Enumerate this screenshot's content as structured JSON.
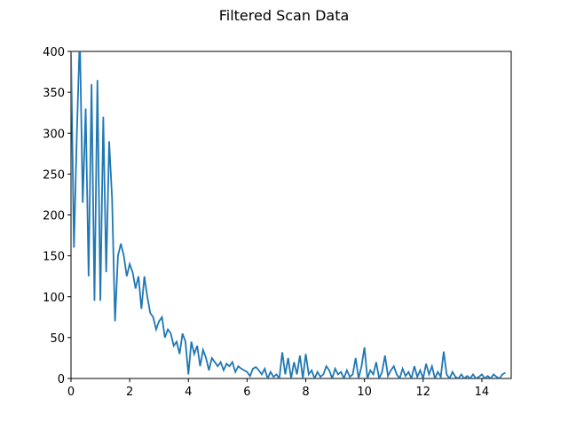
{
  "chart_data": {
    "type": "line",
    "title": "Filtered Scan Data",
    "x": [
      0.0,
      0.1,
      0.2,
      0.3,
      0.4,
      0.5,
      0.6,
      0.7,
      0.8,
      0.9,
      1.0,
      1.1,
      1.2,
      1.3,
      1.4,
      1.5,
      1.6,
      1.7,
      1.8,
      1.9,
      2.0,
      2.1,
      2.2,
      2.3,
      2.4,
      2.5,
      2.6,
      2.7,
      2.8,
      2.9,
      3.0,
      3.1,
      3.2,
      3.3,
      3.4,
      3.5,
      3.6,
      3.7,
      3.8,
      3.9,
      4.0,
      4.1,
      4.2,
      4.3,
      4.4,
      4.5,
      4.6,
      4.7,
      4.8,
      4.9,
      5.0,
      5.1,
      5.2,
      5.3,
      5.4,
      5.5,
      5.6,
      5.7,
      5.8,
      5.9,
      6.0,
      6.1,
      6.2,
      6.3,
      6.4,
      6.5,
      6.6,
      6.7,
      6.8,
      6.9,
      7.0,
      7.1,
      7.2,
      7.3,
      7.4,
      7.5,
      7.6,
      7.7,
      7.8,
      7.9,
      8.0,
      8.1,
      8.2,
      8.3,
      8.4,
      8.5,
      8.6,
      8.7,
      8.8,
      8.9,
      9.0,
      9.1,
      9.2,
      9.3,
      9.4,
      9.5,
      9.6,
      9.7,
      9.8,
      9.9,
      10.0,
      10.1,
      10.2,
      10.3,
      10.4,
      10.5,
      10.6,
      10.7,
      10.8,
      10.9,
      11.0,
      11.1,
      11.2,
      11.3,
      11.4,
      11.5,
      11.6,
      11.7,
      11.8,
      11.9,
      12.0,
      12.1,
      12.2,
      12.3,
      12.4,
      12.5,
      12.6,
      12.7,
      12.8,
      12.9,
      13.0,
      13.1,
      13.2,
      13.3,
      13.4,
      13.5,
      13.6,
      13.7,
      13.8,
      13.9,
      14.0,
      14.1,
      14.2,
      14.3,
      14.4,
      14.5,
      14.6,
      14.7,
      14.8
    ],
    "series": [
      {
        "color": "#1f77b4",
        "values": [
          400,
          160,
          300,
          420,
          215,
          330,
          125,
          360,
          95,
          365,
          95,
          320,
          130,
          290,
          220,
          70,
          150,
          165,
          150,
          125,
          140,
          130,
          110,
          125,
          85,
          125,
          100,
          80,
          75,
          60,
          70,
          75,
          50,
          60,
          55,
          40,
          45,
          30,
          55,
          45,
          5,
          45,
          30,
          40,
          15,
          35,
          25,
          10,
          25,
          20,
          15,
          20,
          10,
          18,
          15,
          20,
          8,
          15,
          12,
          10,
          8,
          3,
          12,
          14,
          10,
          5,
          12,
          0,
          8,
          2,
          5,
          0,
          32,
          5,
          25,
          0,
          20,
          5,
          28,
          0,
          30,
          5,
          10,
          0,
          8,
          2,
          5,
          15,
          10,
          0,
          12,
          5,
          8,
          0,
          10,
          2,
          5,
          25,
          0,
          15,
          38,
          0,
          10,
          5,
          20,
          0,
          8,
          28,
          3,
          10,
          15,
          5,
          0,
          12,
          3,
          8,
          0,
          15,
          2,
          10,
          0,
          18,
          5,
          15,
          0,
          8,
          2,
          33,
          5,
          0,
          8,
          2,
          0,
          5,
          0,
          3,
          0,
          5,
          0,
          2,
          5,
          0,
          3,
          0,
          5,
          2,
          0,
          5,
          7
        ]
      }
    ],
    "xlim": [
      0,
      15
    ],
    "ylim": [
      0,
      400
    ],
    "xticks": [
      0,
      2,
      4,
      6,
      8,
      10,
      12,
      14
    ],
    "yticks": [
      0,
      50,
      100,
      150,
      200,
      250,
      300,
      350,
      400
    ]
  }
}
